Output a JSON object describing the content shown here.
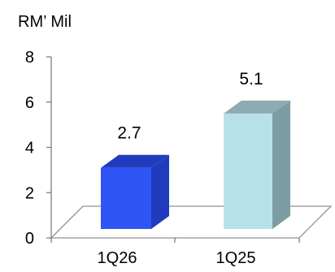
{
  "chart_data": {
    "type": "bar",
    "unit_label": "RM’ Mil",
    "categories": [
      "1Q26",
      "1Q25"
    ],
    "values": [
      2.7,
      5.1
    ],
    "data_labels": [
      "2.7",
      "5.1"
    ],
    "yticks": [
      "0",
      "2",
      "4",
      "6",
      "8"
    ],
    "ylim": [
      0,
      8
    ],
    "grid": false,
    "legend": "none",
    "colors": {
      "bar_1Q26": {
        "front": "#2f55f5",
        "side": "#1f3cbf",
        "top": "#1f3cbf"
      },
      "bar_1Q25": {
        "front": "#b6e1ea",
        "side": "#7e9ca4",
        "top": "#8eaab3"
      },
      "axis": "#808080",
      "floor": "#909090"
    }
  }
}
